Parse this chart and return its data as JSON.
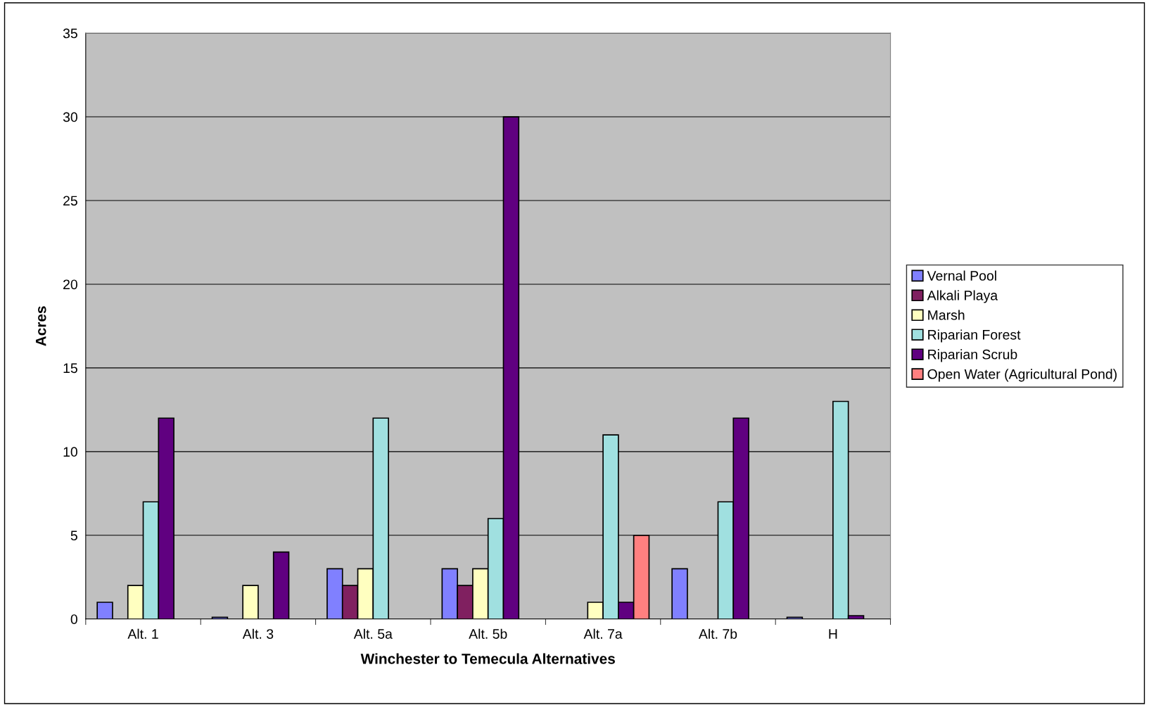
{
  "chart_data": {
    "type": "bar",
    "xlabel": "Winchester to Temecula Alternatives",
    "ylabel": "Acres",
    "categories": [
      "Alt. 1",
      "Alt. 3",
      "Alt. 5a",
      "Alt. 5b",
      "Alt. 7a",
      "Alt. 7b",
      "H"
    ],
    "series": [
      {
        "name": "Vernal Pool",
        "color": "#8080ff",
        "values": [
          1,
          0.1,
          3,
          3,
          null,
          3,
          0.1
        ]
      },
      {
        "name": "Alkali Playa",
        "color": "#802060",
        "values": [
          null,
          null,
          2,
          2,
          null,
          null,
          null
        ]
      },
      {
        "name": "Marsh",
        "color": "#ffffc0",
        "values": [
          2,
          2,
          3,
          3,
          1,
          null,
          null
        ]
      },
      {
        "name": "Riparian Forest",
        "color": "#a0e0e0",
        "values": [
          7,
          null,
          12,
          6,
          11,
          7,
          13
        ]
      },
      {
        "name": "Riparian Scrub",
        "color": "#600080",
        "values": [
          12,
          4,
          null,
          30,
          1,
          12,
          0.2
        ]
      },
      {
        "name": "Open Water (Agricultural Pond)",
        "color": "#ff8080",
        "values": [
          null,
          null,
          null,
          null,
          5,
          null,
          null
        ]
      }
    ],
    "ylim": [
      0,
      35
    ],
    "yticks": [
      0,
      5,
      10,
      15,
      20,
      25,
      30,
      35
    ],
    "grid": "y",
    "legend": "right"
  }
}
